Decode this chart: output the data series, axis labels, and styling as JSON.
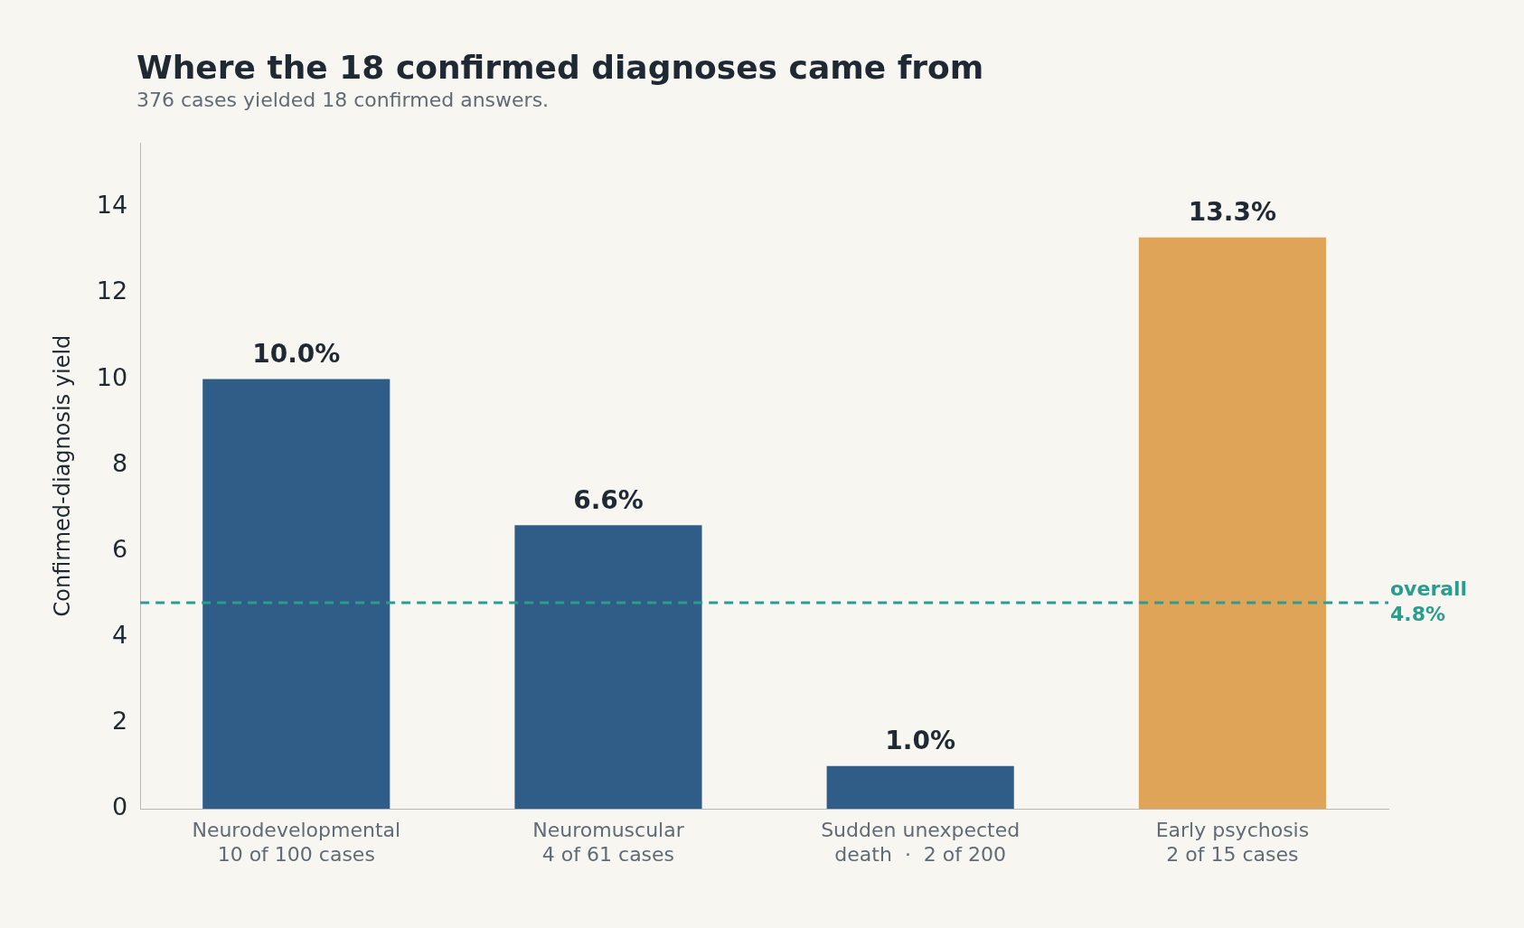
{
  "chart_data": {
    "type": "bar",
    "title": "Where the 18 confirmed diagnoses came from",
    "subtitle": "376 cases yielded 18 confirmed answers.",
    "ylabel": "Confirmed-diagnosis yield",
    "categories": [
      "Neurodevelopmental\n10 of 100 cases",
      "Neuromuscular\n4 of 61 cases",
      "Sudden unexpected\ndeath  ·  2 of 200",
      "Early psychosis\n2 of 15 cases"
    ],
    "values": [
      10.0,
      6.6,
      1.0,
      13.3
    ],
    "colors": [
      "#2f5d88",
      "#2f5d88",
      "#2f5d88",
      "#e0a458"
    ],
    "value_labels": [
      "10.0%",
      "6.6%",
      "1.0%",
      "13.3%"
    ],
    "ylim": [
      0,
      15.5
    ],
    "yticks": [
      0,
      2,
      4,
      6,
      8,
      10,
      12,
      14
    ],
    "ref_lines": [
      {
        "axis": "y",
        "value": 4.8,
        "label": "overall\n4.8%",
        "color": "#2a9d8f",
        "line_style": "dashed"
      }
    ],
    "grid": false,
    "legend": false
  }
}
